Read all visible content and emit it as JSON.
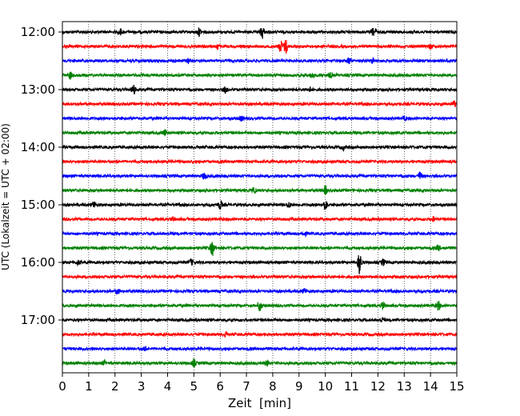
{
  "chart_data": {
    "type": "line",
    "title": "",
    "xlabel": "Zeit  [min]",
    "ylabel": "UTC (Lokalzeit = UTC + 02:00)",
    "xlim": [
      0,
      15
    ],
    "x_ticks": [
      "0",
      "1",
      "2",
      "3",
      "4",
      "5",
      "6",
      "7",
      "8",
      "9",
      "10",
      "11",
      "12",
      "13",
      "14",
      "15"
    ],
    "y_tick_labels": [
      "12:00",
      "13:00",
      "14:00",
      "15:00",
      "16:00",
      "17:00"
    ],
    "vertical_grid": true,
    "grid_style": "dotted",
    "trace_colors": [
      "#000000",
      "#ff0000",
      "#0000ff",
      "#008000"
    ],
    "traces": [
      {
        "start": "12:00",
        "color": "#000000",
        "events": [
          [
            2.2,
            0.4
          ],
          [
            5.2,
            0.5
          ],
          [
            7.6,
            0.9
          ],
          [
            11.9,
            0.3
          ],
          [
            11.8,
            0.35
          ]
        ]
      },
      {
        "start": "12:15",
        "color": "#ff0000",
        "events": [
          [
            5.9,
            0.4
          ],
          [
            8.5,
            1.0
          ],
          [
            8.3,
            0.8
          ],
          [
            14.0,
            0.3
          ]
        ]
      },
      {
        "start": "12:30",
        "color": "#0000ff",
        "events": [
          [
            4.8,
            0.3
          ],
          [
            10.9,
            0.4
          ],
          [
            11.8,
            0.3
          ]
        ]
      },
      {
        "start": "12:45",
        "color": "#008000",
        "events": [
          [
            0.3,
            0.5
          ],
          [
            9.5,
            0.4
          ],
          [
            10.2,
            0.3
          ]
        ]
      },
      {
        "start": "13:00",
        "color": "#000000",
        "events": [
          [
            2.7,
            0.6
          ],
          [
            6.2,
            0.4
          ],
          [
            9.4,
            0.3
          ]
        ]
      },
      {
        "start": "13:15",
        "color": "#ff0000",
        "events": [
          [
            14.9,
            0.4
          ]
        ]
      },
      {
        "start": "13:30",
        "color": "#0000ff",
        "events": [
          [
            6.8,
            0.3
          ],
          [
            13.0,
            0.3
          ]
        ]
      },
      {
        "start": "13:45",
        "color": "#008000",
        "events": [
          [
            3.9,
            0.4
          ]
        ]
      },
      {
        "start": "14:00",
        "color": "#000000",
        "events": [
          [
            10.7,
            0.3
          ]
        ]
      },
      {
        "start": "14:15",
        "color": "#ff0000",
        "events": []
      },
      {
        "start": "14:30",
        "color": "#0000ff",
        "events": [
          [
            5.4,
            0.5
          ],
          [
            13.6,
            0.5
          ]
        ]
      },
      {
        "start": "14:45",
        "color": "#008000",
        "events": [
          [
            7.3,
            0.4
          ],
          [
            10.0,
            0.5
          ]
        ]
      },
      {
        "start": "15:00",
        "color": "#000000",
        "events": [
          [
            1.2,
            0.4
          ],
          [
            6.0,
            0.6
          ],
          [
            8.6,
            0.4
          ],
          [
            10.0,
            0.7
          ]
        ]
      },
      {
        "start": "15:15",
        "color": "#ff0000",
        "events": [
          [
            4.2,
            0.3
          ],
          [
            14.1,
            0.3
          ]
        ]
      },
      {
        "start": "15:30",
        "color": "#0000ff",
        "events": [
          [
            9.2,
            0.3
          ]
        ]
      },
      {
        "start": "15:45",
        "color": "#008000",
        "events": [
          [
            5.7,
            1.0
          ],
          [
            14.3,
            0.3
          ]
        ]
      },
      {
        "start": "16:00",
        "color": "#000000",
        "events": [
          [
            0.6,
            0.3
          ],
          [
            4.9,
            0.4
          ],
          [
            11.3,
            1.6
          ],
          [
            12.2,
            0.4
          ]
        ]
      },
      {
        "start": "16:15",
        "color": "#ff0000",
        "events": []
      },
      {
        "start": "16:30",
        "color": "#0000ff",
        "events": [
          [
            2.1,
            0.4
          ],
          [
            9.2,
            0.3
          ]
        ]
      },
      {
        "start": "16:45",
        "color": "#008000",
        "events": [
          [
            7.5,
            0.7
          ],
          [
            12.2,
            0.5
          ],
          [
            14.3,
            0.6
          ]
        ]
      },
      {
        "start": "17:00",
        "color": "#000000",
        "events": [
          [
            12.2,
            0.3
          ]
        ]
      },
      {
        "start": "17:15",
        "color": "#ff0000",
        "events": [
          [
            6.2,
            0.3
          ]
        ]
      },
      {
        "start": "17:30",
        "color": "#0000ff",
        "events": [
          [
            3.1,
            0.3
          ]
        ]
      },
      {
        "start": "17:45",
        "color": "#008000",
        "events": [
          [
            1.6,
            0.3
          ],
          [
            5.0,
            0.5
          ],
          [
            7.8,
            0.3
          ]
        ]
      }
    ]
  }
}
